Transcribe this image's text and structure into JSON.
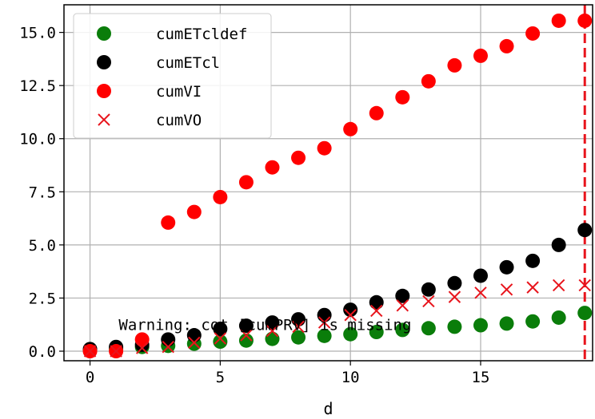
{
  "chart_data": {
    "type": "scatter",
    "xlabel": "d",
    "ylabel": "",
    "xlim": [
      -1,
      19.3
    ],
    "ylim": [
      -0.45,
      16.3
    ],
    "xticks": [
      0,
      5,
      10,
      15
    ],
    "yticks": [
      0.0,
      2.5,
      5.0,
      7.5,
      10.0,
      12.5,
      15.0
    ],
    "ytick_labels": [
      "0.0",
      "2.5",
      "5.0",
      "7.5",
      "10.0",
      "12.5",
      "15.0"
    ],
    "grid": true,
    "legend_position": "top-left",
    "vline": {
      "x": 19,
      "color": "#e8141c",
      "style": "dashed"
    },
    "annotation": {
      "text": "Warning: cot [cumPRV] is missing",
      "x": 1.1,
      "y": 1.0
    },
    "series": [
      {
        "name": "cumETcldef",
        "marker": "circle",
        "color": "#0a7d0a",
        "x": [
          0,
          1,
          2,
          3,
          4,
          5,
          6,
          7,
          8,
          9,
          10,
          11,
          12,
          13,
          14,
          15,
          16,
          17,
          18,
          19
        ],
        "y": [
          0.05,
          0.1,
          0.2,
          0.25,
          0.35,
          0.45,
          0.5,
          0.58,
          0.65,
          0.72,
          0.8,
          0.9,
          1.0,
          1.08,
          1.15,
          1.22,
          1.3,
          1.4,
          1.58,
          1.8
        ]
      },
      {
        "name": "cumETcl",
        "marker": "circle",
        "color": "#000000",
        "x": [
          0,
          1,
          2,
          3,
          4,
          5,
          6,
          7,
          8,
          9,
          10,
          11,
          12,
          13,
          14,
          15,
          16,
          17,
          18,
          19
        ],
        "y": [
          0.1,
          0.2,
          0.3,
          0.55,
          0.75,
          1.05,
          1.2,
          1.35,
          1.5,
          1.7,
          1.95,
          2.3,
          2.6,
          2.9,
          3.2,
          3.55,
          3.95,
          4.25,
          5.0,
          5.7
        ]
      },
      {
        "name": "cumVI",
        "marker": "circle",
        "color": "#ff0000",
        "x": [
          0,
          1,
          2,
          3,
          4,
          5,
          6,
          7,
          8,
          9,
          10,
          11,
          12,
          13,
          14,
          15,
          16,
          17,
          18,
          19
        ],
        "y": [
          0.0,
          0.0,
          0.55,
          6.05,
          6.55,
          7.25,
          7.95,
          8.65,
          9.1,
          9.55,
          10.45,
          11.2,
          11.95,
          12.7,
          13.45,
          13.9,
          14.35,
          14.95,
          15.55,
          15.55
        ]
      },
      {
        "name": "cumVO",
        "marker": "x",
        "color": "#e8141c",
        "x": [
          0,
          1,
          2,
          3,
          4,
          5,
          6,
          7,
          8,
          9,
          10,
          11,
          12,
          13,
          14,
          15,
          16,
          17,
          18,
          19
        ],
        "y": [
          0.0,
          0.0,
          0.15,
          0.2,
          0.4,
          0.6,
          0.75,
          0.95,
          1.15,
          1.35,
          1.7,
          1.9,
          2.15,
          2.35,
          2.55,
          2.75,
          2.9,
          3.0,
          3.1,
          3.1
        ]
      }
    ]
  }
}
